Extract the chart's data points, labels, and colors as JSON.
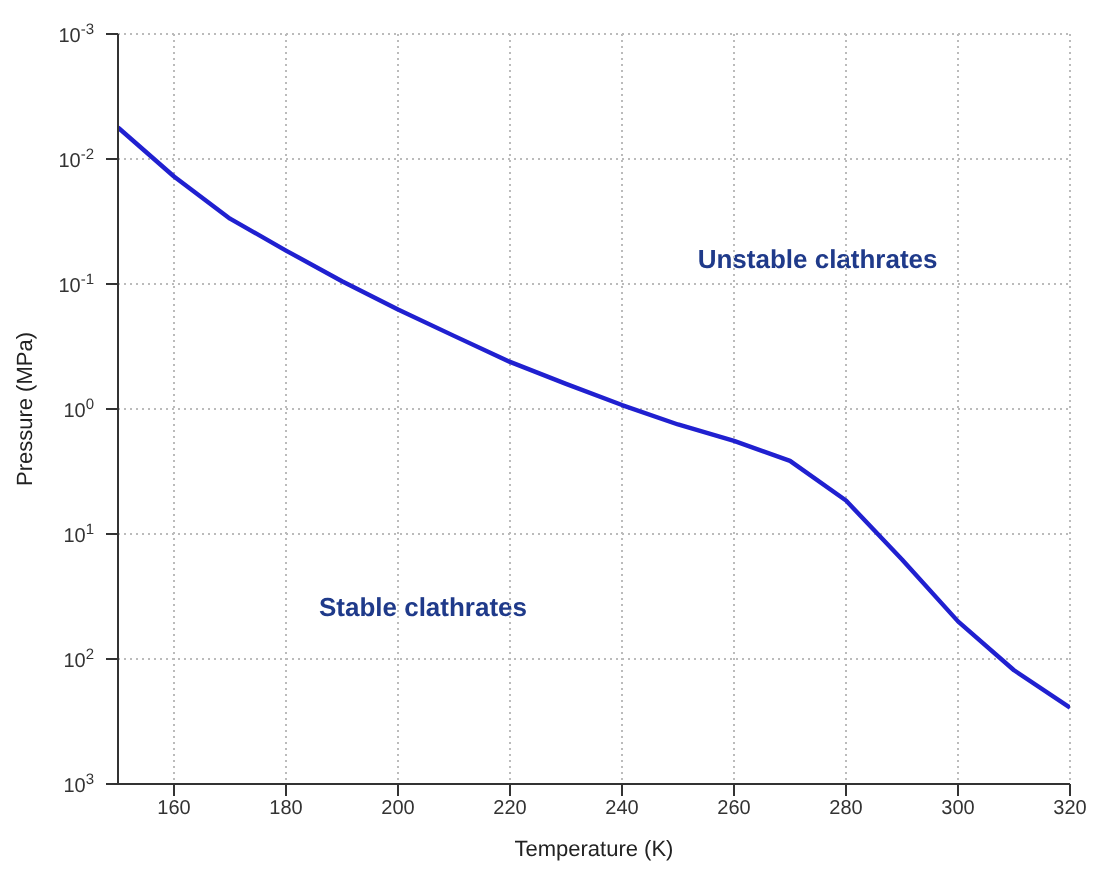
{
  "chart_data": {
    "type": "line",
    "xlabel": "Temperature (K)",
    "ylabel": "Pressure (MPa)",
    "x": [
      150,
      160,
      170,
      180,
      190,
      200,
      210,
      220,
      230,
      240,
      250,
      260,
      270,
      280,
      290,
      300,
      310,
      320
    ],
    "series": [
      {
        "color": "#2020d0",
        "values": [
          0.0056,
          0.0138,
          0.03,
          0.054,
          0.095,
          0.16,
          0.26,
          0.42,
          0.63,
          0.93,
          1.33,
          1.8,
          2.6,
          5.4,
          16,
          50,
          123,
          245
        ]
      }
    ],
    "xlim": [
      150,
      320
    ],
    "xticks": [
      160,
      180,
      200,
      220,
      240,
      260,
      280,
      300,
      320
    ],
    "ylim": [
      1000,
      0.001
    ],
    "log": "y",
    "yticks": [
      {
        "value": 0.001,
        "label": "10$^{-3}$"
      },
      {
        "value": 0.01,
        "label": "10$^{-2}$"
      },
      {
        "value": 0.1,
        "label": "10$^{-1}$"
      },
      {
        "value": 1,
        "label": "10$^{0}$"
      },
      {
        "value": 10,
        "label": "10$^{1}$"
      },
      {
        "value": 100,
        "label": "10$^{2}$"
      },
      {
        "value": 1000,
        "label": "10$^{3}$"
      }
    ],
    "grid": true,
    "line_style": "solid",
    "marker": "none",
    "legend": false,
    "annotations": [
      "Unstable clathrates",
      "Stable clathrates"
    ]
  }
}
